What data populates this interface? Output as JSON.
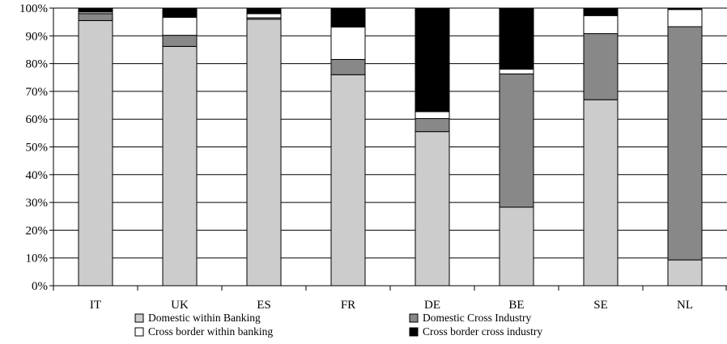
{
  "chart_data": {
    "type": "bar",
    "stacked": true,
    "categories": [
      "IT",
      "UK",
      "ES",
      "FR",
      "DE",
      "BE",
      "SE",
      "NL"
    ],
    "series": [
      {
        "name": "Domestic within Banking",
        "color": "#cccccc",
        "values": [
          95.5,
          86.2,
          96.0,
          76.0,
          55.5,
          28.3,
          67.0,
          9.3
        ]
      },
      {
        "name": "Domestic Cross Industry",
        "color": "#888888",
        "values": [
          2.5,
          4.0,
          0.5,
          5.5,
          4.7,
          48.0,
          23.8,
          84.0
        ]
      },
      {
        "name": "Cross border within banking",
        "color": "#ffffff",
        "values": [
          0.6,
          6.5,
          1.5,
          11.7,
          2.5,
          1.7,
          6.5,
          6.2
        ]
      },
      {
        "name": "Cross border cross industry",
        "color": "#000000",
        "values": [
          1.4,
          3.3,
          2.0,
          6.8,
          37.3,
          22.0,
          2.7,
          0.5
        ]
      }
    ],
    "yticks": [
      "0%",
      "10%",
      "20%",
      "30%",
      "40%",
      "50%",
      "60%",
      "70%",
      "80%",
      "90%",
      "100%"
    ],
    "ylim": [
      0,
      100
    ],
    "grid": true,
    "legend_position": "bottom"
  }
}
